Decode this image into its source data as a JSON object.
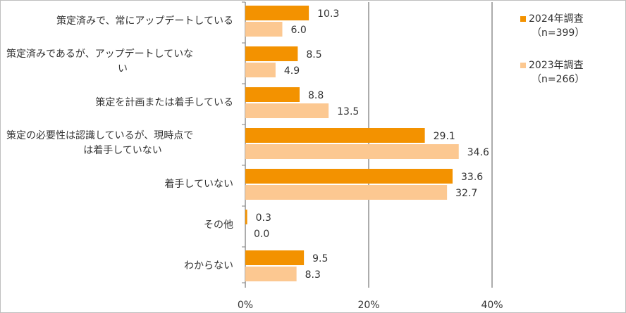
{
  "chart_data": {
    "type": "bar",
    "orientation": "horizontal",
    "categories": [
      "策定済みで、常にアップデートしている",
      "策定済みであるが、アップデートしていな\nい",
      "策定を計画または着手している",
      "策定の必要性は認識しているが、現時点で\nは着手していない",
      "着手していない",
      "その他",
      "わからない"
    ],
    "series": [
      {
        "name": "2024年調査",
        "n": "（n=399）",
        "color": "#F39200",
        "values": [
          10.3,
          8.5,
          8.8,
          29.1,
          33.6,
          0.3,
          9.5
        ],
        "labels": [
          "10.3",
          "8.5",
          "8.8",
          "29.1",
          "33.6",
          "0.3",
          "9.5"
        ]
      },
      {
        "name": "2023年調査",
        "n": "（n=266）",
        "color": "#FCC891",
        "values": [
          6.0,
          4.9,
          13.5,
          34.6,
          32.7,
          0.0,
          8.3
        ],
        "labels": [
          "6.0",
          "4.9",
          "13.5",
          "34.6",
          "32.7",
          "0.0",
          "8.3"
        ]
      }
    ],
    "xlim": [
      0,
      40
    ],
    "xticks": [
      0,
      20,
      40
    ],
    "xtick_labels": [
      "0%",
      "20%",
      "40%"
    ],
    "grid": true,
    "legend": "right"
  }
}
